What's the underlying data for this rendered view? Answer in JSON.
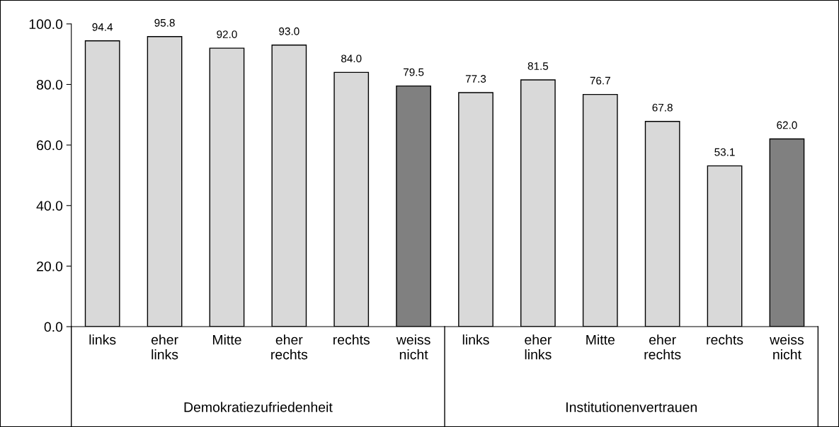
{
  "chart_data": {
    "type": "bar",
    "categories": [
      "links",
      "eher links",
      "Mitte",
      "eher rechts",
      "rechts",
      "weiss nicht",
      "links",
      "eher links",
      "Mitte",
      "eher rechts",
      "rechts",
      "weiss nicht"
    ],
    "values": [
      94.4,
      95.8,
      92.0,
      93.0,
      84.0,
      79.5,
      77.3,
      81.5,
      76.7,
      67.8,
      53.1,
      62.0
    ],
    "value_labels": [
      "94.4",
      "95.8",
      "92.0",
      "93.0",
      "84.0",
      "79.5",
      "77.3",
      "81.5",
      "76.7",
      "67.8",
      "53.1",
      "62.0"
    ],
    "colors": [
      "#d9d9d9",
      "#d9d9d9",
      "#d9d9d9",
      "#d9d9d9",
      "#d9d9d9",
      "#808080",
      "#d9d9d9",
      "#d9d9d9",
      "#d9d9d9",
      "#d9d9d9",
      "#d9d9d9",
      "#808080"
    ],
    "ylim": [
      0,
      100
    ],
    "yticks": [
      {
        "value": 0,
        "label": "0.0"
      },
      {
        "value": 20,
        "label": "20.0"
      },
      {
        "value": 40,
        "label": "40.0"
      },
      {
        "value": 60,
        "label": "60.0"
      },
      {
        "value": 80,
        "label": "80.0"
      },
      {
        "value": 100,
        "label": "100.0"
      }
    ],
    "annotations": [
      "Demokratiezufriedenheit",
      "Institutionenvertrauen"
    ],
    "grid": false,
    "legend": false
  }
}
